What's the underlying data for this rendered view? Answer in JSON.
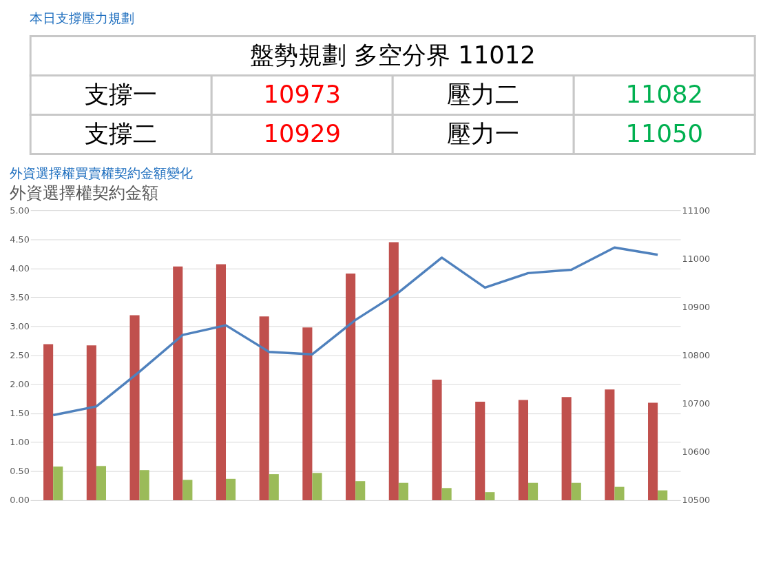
{
  "chart_data": [
    {
      "type": "other",
      "title": "本日支撐壓力規劃",
      "annotations": [
        "盤勢規劃 多空分界 11012",
        "支撐一",
        "10973",
        "壓力二",
        "11082",
        "支撐二",
        "10929",
        "壓力一",
        "11050"
      ],
      "colors": [
        "#000000",
        "#000000",
        "#ff0000",
        "#000000",
        "#00b050",
        "#000000",
        "#ff0000",
        "#000000",
        "#00b050"
      ]
    },
    {
      "type": "bar",
      "title": "外資選擇權買賣權契約金額變化",
      "subtitle": "外資選擇權契約金額",
      "categories": [
        null,
        null,
        null,
        null,
        null,
        null,
        null,
        null,
        null,
        null,
        null,
        null,
        null,
        null,
        null
      ],
      "series": [
        {
          "color": "#c0504d",
          "values": [
            2.69,
            2.67,
            3.19,
            4.03,
            4.07,
            3.17,
            2.98,
            3.91,
            4.45,
            2.08,
            1.7,
            1.73,
            1.78,
            1.91,
            1.68
          ]
        },
        {
          "color": "#9bbb59",
          "values": [
            0.58,
            0.59,
            0.52,
            0.35,
            0.37,
            0.45,
            0.47,
            0.33,
            0.3,
            0.21,
            0.14,
            0.3,
            0.3,
            0.23,
            0.17
          ]
        },
        {
          "type": "line",
          "axis": "y2",
          "color": "#4f81bd",
          "values": [
            10676,
            10694,
            10766,
            10842,
            10862,
            10807,
            10802,
            10873,
            10930,
            11002,
            10940,
            10970,
            10977,
            11023,
            11008
          ]
        }
      ],
      "ylim": [
        0,
        5
      ],
      "yticks": [
        {
          "value": 0,
          "label": "0.00"
        },
        {
          "value": 0.5,
          "label": "0.50"
        },
        {
          "value": 1,
          "label": "1.00"
        },
        {
          "value": 1.5,
          "label": "1.50"
        },
        {
          "value": 2,
          "label": "2.00"
        },
        {
          "value": 2.5,
          "label": "2.50"
        },
        {
          "value": 3,
          "label": "3.00"
        },
        {
          "value": 3.5,
          "label": "3.50"
        },
        {
          "value": 4,
          "label": "4.00"
        },
        {
          "value": 4.5,
          "label": "4.50"
        },
        {
          "value": 5,
          "label": "5.00"
        }
      ],
      "y2lim": [
        10500,
        11100
      ],
      "y2ticks": [
        10500,
        10600,
        10700,
        10800,
        10900,
        11000,
        11100
      ],
      "grid": "y",
      "marker": "none",
      "line_style": "solid"
    }
  ]
}
